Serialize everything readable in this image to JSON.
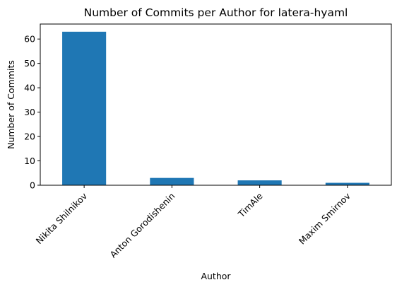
{
  "chart_data": {
    "type": "bar",
    "title": "Number of Commits per Author for latera-hyaml",
    "xlabel": "Author",
    "ylabel": "Number of Commits",
    "categories": [
      "Nikita Shilnikov",
      "Anton Gorodishenin",
      "TimAle",
      "Maxim Smirnov"
    ],
    "values": [
      63,
      3,
      2,
      1
    ],
    "ylim": [
      0,
      66.15
    ],
    "yticks": [
      0,
      10,
      20,
      30,
      40,
      50,
      60
    ],
    "grid": false,
    "legend": "none",
    "bar_color": "#1f77b4"
  }
}
